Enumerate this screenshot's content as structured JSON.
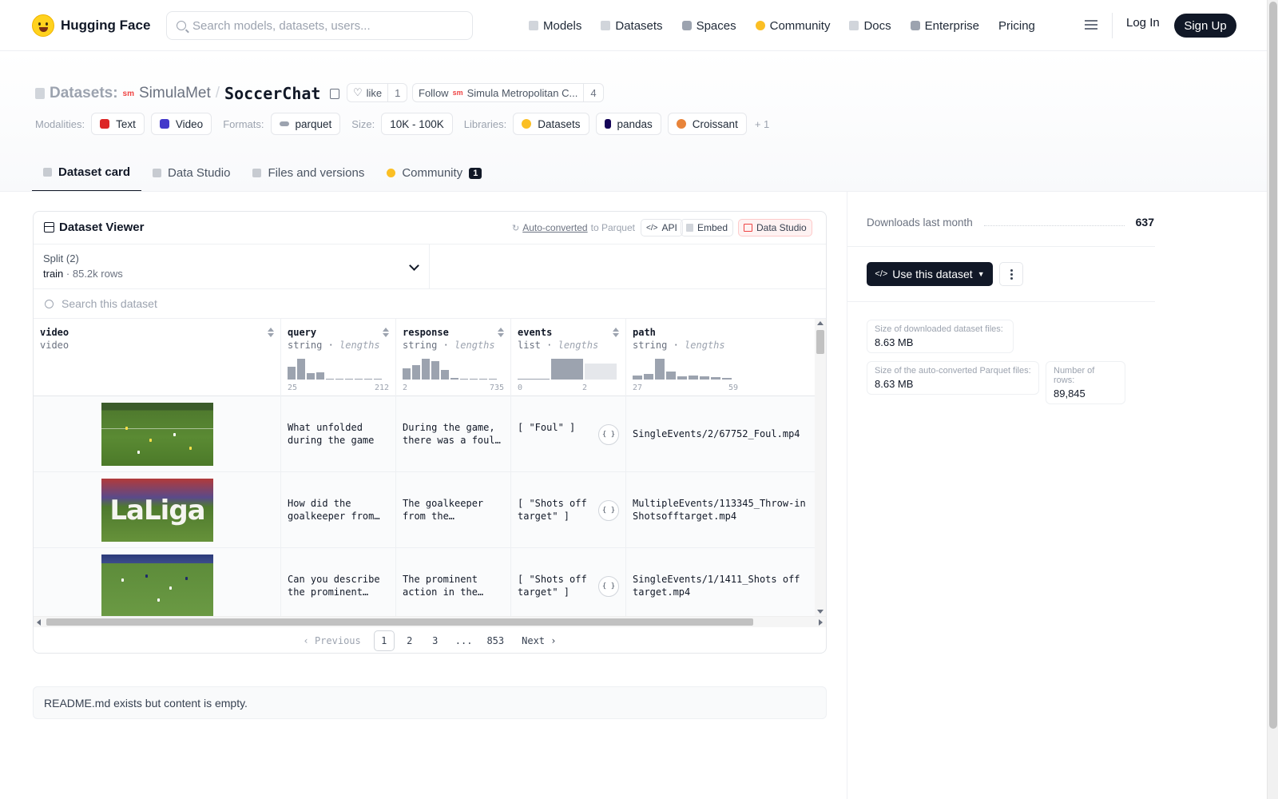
{
  "nav": {
    "brand": "Hugging Face",
    "search_placeholder": "Search models, datasets, users...",
    "links": [
      "Models",
      "Datasets",
      "Spaces",
      "Community",
      "Docs",
      "Enterprise",
      "Pricing"
    ],
    "login": "Log In",
    "signup": "Sign Up"
  },
  "header": {
    "section": "Datasets:",
    "org": "SimulaMet",
    "org_icon_text": "sm",
    "dataset": "SoccerChat",
    "like_label": "like",
    "like_count": "1",
    "follow_label": "Follow",
    "follow_org": "Simula Metropolitan C...",
    "follow_count": "4",
    "modalities_label": "Modalities:",
    "modalities": [
      "Text",
      "Video"
    ],
    "formats_label": "Formats:",
    "format": "parquet",
    "size_label": "Size:",
    "size": "10K - 100K",
    "libraries_label": "Libraries:",
    "libraries": [
      "Datasets",
      "pandas",
      "Croissant"
    ],
    "more": "+ 1"
  },
  "tabs": [
    {
      "label": "Dataset card",
      "active": true
    },
    {
      "label": "Data Studio",
      "active": false
    },
    {
      "label": "Files and versions",
      "active": false
    },
    {
      "label": "Community",
      "active": false,
      "badge": "1"
    }
  ],
  "viewer": {
    "title": "Dataset Viewer",
    "auto_converted": "Auto-converted",
    "to_parquet": "to Parquet",
    "api": "API",
    "embed": "Embed",
    "studio": "Data Studio",
    "split_title": "Split (2)",
    "split_name": "train",
    "split_rows": "85.2k rows",
    "search_placeholder": "Search this dataset",
    "columns": [
      {
        "name": "video",
        "type": "video",
        "sub": ""
      },
      {
        "name": "query",
        "type": "string",
        "sub": "lengths",
        "min": "25",
        "max": "212"
      },
      {
        "name": "response",
        "type": "string",
        "sub": "lengths",
        "min": "2",
        "max": "735"
      },
      {
        "name": "events",
        "type": "list",
        "sub": "lengths",
        "min": "0",
        "max": "2"
      },
      {
        "name": "path",
        "type": "string",
        "sub": "lengths",
        "min": "27",
        "max": "59"
      }
    ],
    "rows": [
      {
        "query": "What unfolded during the game i…",
        "response": "During the game, there was a foul…",
        "events": "[ \"Foul\" ]",
        "path": "SingleEvents/2/67752_Foul.mp4",
        "video_overlay": ""
      },
      {
        "query": "How did the goalkeeper from…",
        "response": "The goalkeeper from the…",
        "events": "[ \"Shots off target\" ]",
        "path": "MultipleEvents/113345_Throw-in Shotsofftarget.mp4",
        "video_overlay": "LaLiga"
      },
      {
        "query": "Can you describe the prominent…",
        "response": "The prominent action in the…",
        "events": "[ \"Shots off target\" ]",
        "path": "SingleEvents/1/1411_Shots off target.mp4",
        "video_overlay": ""
      }
    ],
    "pager": {
      "prev": "Previous",
      "pages": [
        "1",
        "2",
        "3",
        "...",
        "853"
      ],
      "next": "Next"
    }
  },
  "sidebar": {
    "downloads_label": "Downloads last month",
    "downloads": "637",
    "use_label": "Use this dataset",
    "stat1_label": "Size of downloaded dataset files:",
    "stat1_value": "8.63 MB",
    "stat2_label": "Size of the auto-converted Parquet files:",
    "stat2_value": "8.63 MB",
    "stat3_label": "Number of rows:",
    "stat3_value": "89,845"
  },
  "readme": "README.md exists but content is empty.",
  "histograms": {
    "query": [
      0.6,
      1.0,
      0.3,
      0.35,
      0.04,
      0.04,
      0.04,
      0.04,
      0.04,
      0.04
    ],
    "response": [
      0.55,
      0.7,
      1.0,
      0.9,
      0.45,
      0.08,
      0.04,
      0.04,
      0.04,
      0.04
    ],
    "events": [
      0.05,
      1.0,
      0.75
    ],
    "path": [
      0.2,
      0.25,
      1.0,
      0.4,
      0.15,
      0.2,
      0.15,
      0.1,
      0.08
    ]
  }
}
